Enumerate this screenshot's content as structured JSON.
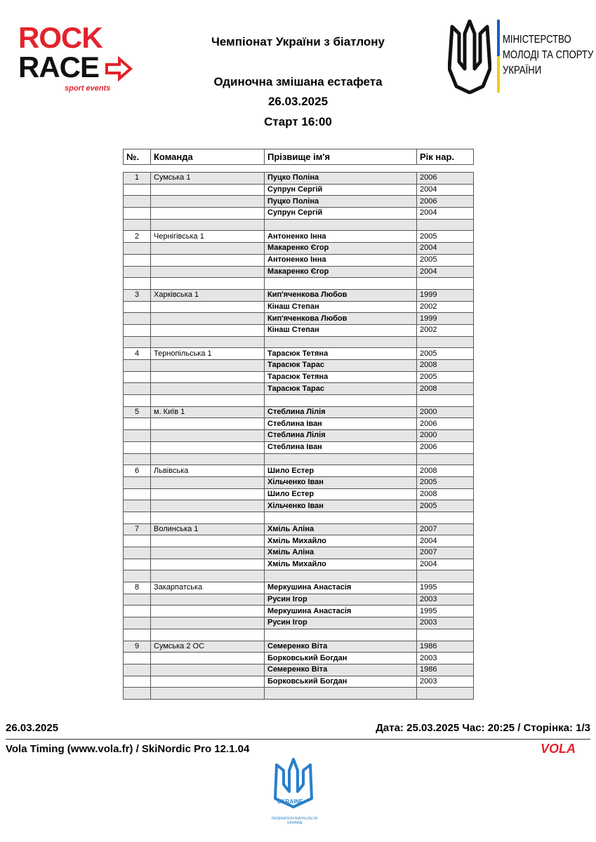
{
  "header": {
    "logo_left": {
      "line1": "ROCK",
      "line2": "RACE",
      "tagline": "sport events"
    },
    "logo_right": {
      "line1": "МІНІСТЕРСТВО",
      "line2": "МОЛОДІ ТА СПОРТУ",
      "line3": "УКРАЇНИ"
    },
    "title": "Чемпіонат України з біатлону",
    "subtitle": "Одиночна змішана естафета",
    "date": "26.03.2025",
    "start": "Старт 16:00"
  },
  "table": {
    "headers": [
      "№.",
      "Команда",
      "Прізвище ім'я",
      "Рік нар."
    ],
    "teams": [
      {
        "no": "1",
        "team": "Сумська 1",
        "members": [
          {
            "name": "Пуцко Поліна",
            "year": "2006"
          },
          {
            "name": "Супрун Сергій",
            "year": "2004"
          },
          {
            "name": "Пуцко Поліна",
            "year": "2006"
          },
          {
            "name": "Супрун Сергій",
            "year": "2004"
          }
        ]
      },
      {
        "no": "2",
        "team": "Чернігівська 1",
        "members": [
          {
            "name": "Антоненко Інна",
            "year": "2005"
          },
          {
            "name": "Макаренко Єгор",
            "year": "2004"
          },
          {
            "name": "Антоненко Інна",
            "year": "2005"
          },
          {
            "name": "Макаренко Єгор",
            "year": "2004"
          }
        ]
      },
      {
        "no": "3",
        "team": "Харківська 1",
        "members": [
          {
            "name": "Кип'яченкова Любов",
            "year": "1999"
          },
          {
            "name": "Кінаш Степан",
            "year": "2002"
          },
          {
            "name": "Кип'яченкова Любов",
            "year": "1999"
          },
          {
            "name": "Кінаш Степан",
            "year": "2002"
          }
        ]
      },
      {
        "no": "4",
        "team": "Тернопільська 1",
        "members": [
          {
            "name": "Тарасюк Тетяна",
            "year": "2005"
          },
          {
            "name": "Тарасюк Тарас",
            "year": "2008"
          },
          {
            "name": "Тарасюк Тетяна",
            "year": "2005"
          },
          {
            "name": "Тарасюк Тарас",
            "year": "2008"
          }
        ]
      },
      {
        "no": "5",
        "team": "м. Київ 1",
        "members": [
          {
            "name": "Стеблина Лілія",
            "year": "2000"
          },
          {
            "name": "Стеблина Іван",
            "year": "2006"
          },
          {
            "name": "Стеблина Лілія",
            "year": "2000"
          },
          {
            "name": "Стеблина Іван",
            "year": "2006"
          }
        ]
      },
      {
        "no": "6",
        "team": "Львівська",
        "members": [
          {
            "name": "Шило Естер",
            "year": "2008"
          },
          {
            "name": "Хільченко Іван",
            "year": "2005"
          },
          {
            "name": "Шило Естер",
            "year": "2008"
          },
          {
            "name": "Хільченко Іван",
            "year": "2005"
          }
        ]
      },
      {
        "no": "7",
        "team": "Волинська 1",
        "members": [
          {
            "name": "Хміль Аліна",
            "year": "2007"
          },
          {
            "name": "Хміль Михайло",
            "year": "2004"
          },
          {
            "name": "Хміль Аліна",
            "year": "2007"
          },
          {
            "name": "Хміль Михайло",
            "year": "2004"
          }
        ]
      },
      {
        "no": "8",
        "team": "Закарпатська",
        "members": [
          {
            "name": "Меркушина Анастасія",
            "year": "1995"
          },
          {
            "name": "Русин Ігор",
            "year": "2003"
          },
          {
            "name": "Меркушина Анастасія",
            "year": "1995"
          },
          {
            "name": "Русин Ігор",
            "year": "2003"
          }
        ]
      },
      {
        "no": "9",
        "team": "Сумська 2 ОС",
        "members": [
          {
            "name": "Семеренко Віта",
            "year": "1986"
          },
          {
            "name": "Борковський Богдан",
            "year": "2003"
          },
          {
            "name": "Семеренко Віта",
            "year": "1986"
          },
          {
            "name": "Борковський Богдан",
            "year": "2003"
          }
        ]
      }
    ]
  },
  "footer": {
    "date": "26.03.2025",
    "printed": "Дата: 25.03.2025 Час: 20:25 / Сторінка: 1/3",
    "software": "Vola Timing (www.vola.fr) / SkiNordic Pro 12.1.04",
    "vola": "VOLA",
    "federation_badge": "UKRAINE",
    "federation": "FEDERATION BIATHLON OF UKRAINE"
  }
}
